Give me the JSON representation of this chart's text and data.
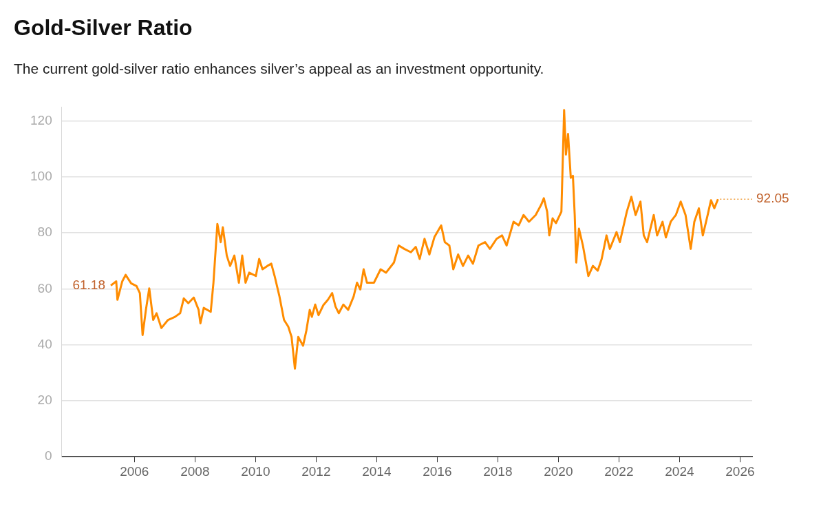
{
  "chart_data": {
    "type": "line",
    "title": "Gold-Silver Ratio",
    "subtitle": "The current gold-silver ratio enhances silver’s appeal as an investment opportunity.",
    "series": [
      {
        "color": "#ff8c00",
        "x": [
          2005.22,
          2005.4,
          2005.44,
          2005.6,
          2005.71,
          2005.89,
          2006.07,
          2006.18,
          2006.27,
          2006.38,
          2006.49,
          2006.62,
          2006.73,
          2006.89,
          2007.11,
          2007.34,
          2007.51,
          2007.63,
          2007.78,
          2007.96,
          2008.12,
          2008.18,
          2008.29,
          2008.52,
          2008.61,
          2008.74,
          2008.85,
          2008.92,
          2009.05,
          2009.16,
          2009.3,
          2009.45,
          2009.56,
          2009.67,
          2009.79,
          2010.01,
          2010.12,
          2010.23,
          2010.39,
          2010.52,
          2010.63,
          2010.79,
          2010.94,
          2011.08,
          2011.19,
          2011.3,
          2011.41,
          2011.57,
          2011.68,
          2011.79,
          2011.86,
          2011.97,
          2012.08,
          2012.24,
          2012.39,
          2012.53,
          2012.64,
          2012.75,
          2012.9,
          2013.06,
          2013.24,
          2013.35,
          2013.46,
          2013.57,
          2013.68,
          2013.91,
          2014.13,
          2014.31,
          2014.57,
          2014.73,
          2014.91,
          2015.13,
          2015.29,
          2015.42,
          2015.58,
          2015.74,
          2015.91,
          2016.13,
          2016.25,
          2016.4,
          2016.53,
          2016.69,
          2016.85,
          2017.02,
          2017.18,
          2017.36,
          2017.58,
          2017.74,
          2017.96,
          2018.14,
          2018.29,
          2018.52,
          2018.69,
          2018.85,
          2019.03,
          2019.25,
          2019.43,
          2019.52,
          2019.63,
          2019.7,
          2019.81,
          2019.92,
          2020.1,
          2020.19,
          2020.25,
          2020.32,
          2020.41,
          2020.48,
          2020.54,
          2020.59,
          2020.68,
          2020.81,
          2020.99,
          2021.14,
          2021.3,
          2021.43,
          2021.59,
          2021.7,
          2021.92,
          2022.03,
          2022.26,
          2022.41,
          2022.55,
          2022.71,
          2022.82,
          2022.93,
          2023.15,
          2023.26,
          2023.44,
          2023.55,
          2023.71,
          2023.88,
          2024.04,
          2024.2,
          2024.37,
          2024.49,
          2024.64,
          2024.77,
          2024.93,
          2025.04,
          2025.15,
          2025.27
        ],
        "values": [
          61.18,
          62.7,
          56.1,
          62.7,
          65,
          62,
          61,
          58.5,
          43.5,
          52.5,
          60.2,
          48.9,
          51.3,
          46,
          48.9,
          50,
          51.3,
          56.6,
          54.9,
          56.9,
          52.5,
          47.7,
          53.2,
          51.8,
          62.2,
          83.2,
          76.7,
          82,
          71.9,
          68.2,
          71.9,
          62.2,
          71.9,
          62.2,
          65.8,
          64.6,
          70.7,
          67,
          68.2,
          69,
          64.6,
          57.3,
          48.9,
          46.5,
          42.8,
          31.5,
          42.8,
          39.7,
          45.2,
          52.5,
          50,
          54.4,
          50.6,
          54.2,
          56.1,
          58.5,
          53.7,
          51.3,
          54.4,
          52.5,
          57.3,
          62.2,
          59.8,
          67,
          62.2,
          62.2,
          67,
          65.8,
          69.4,
          75.5,
          74.3,
          73.1,
          75,
          70.7,
          77.9,
          72.3,
          78.6,
          82.7,
          76.7,
          75.5,
          67,
          72.3,
          68.2,
          71.9,
          69,
          75.5,
          76.7,
          74.3,
          77.9,
          79.1,
          75.5,
          84,
          82.7,
          86.4,
          84,
          86.4,
          90,
          92.4,
          87.6,
          79.1,
          85.2,
          83.5,
          87.6,
          123.9,
          108,
          115.4,
          99.7,
          100.4,
          86.4,
          69.4,
          81.5,
          75.5,
          64.6,
          68.2,
          66.5,
          70.7,
          79.1,
          74.3,
          80.3,
          76.7,
          87.6,
          92.9,
          86.4,
          91.2,
          79.1,
          76.7,
          86.4,
          79.1,
          84,
          78.4,
          84,
          86.4,
          91.2,
          86.4,
          74.3,
          84,
          88.8,
          79.1,
          86.4,
          91.7,
          88.8,
          92.05
        ]
      }
    ],
    "xlim": [
      2003.6,
      2026.4
    ],
    "xticks": [
      2006,
      2008,
      2010,
      2012,
      2014,
      2016,
      2018,
      2020,
      2022,
      2024,
      2026
    ],
    "ylim": [
      0,
      125
    ],
    "yticks": [
      0,
      20,
      40,
      60,
      80,
      100,
      120
    ],
    "grid": "y",
    "marker": "none",
    "line_style": "solid",
    "legend": false,
    "annotations": [
      {
        "text": "61.18",
        "x": 2005.22,
        "y": 61.18
      },
      {
        "text": "92.05",
        "x": 2025.27,
        "y": 92.05
      }
    ]
  }
}
